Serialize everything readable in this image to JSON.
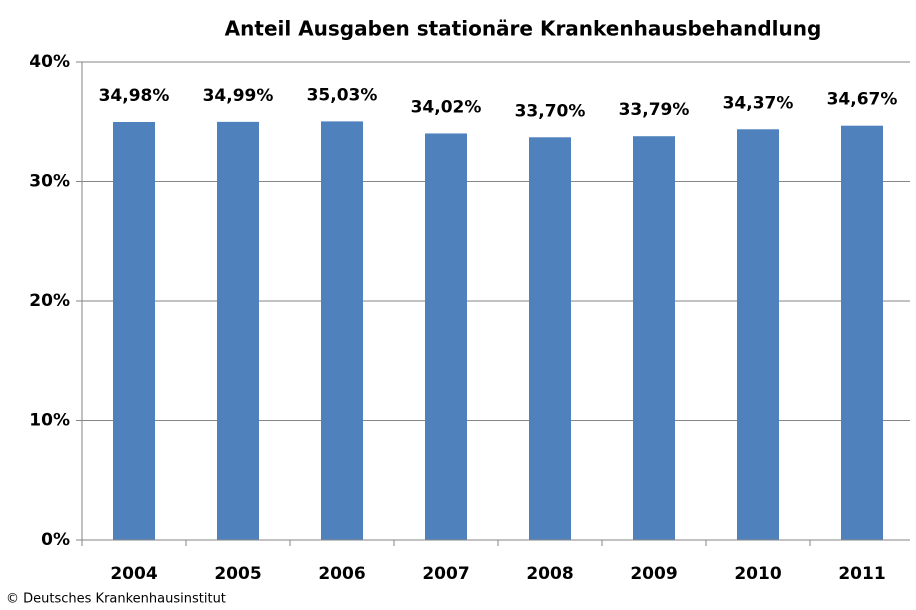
{
  "chart_data": {
    "type": "bar",
    "title": "Anteil Ausgaben stationäre Krankenhausbehandlung",
    "categories": [
      "2004",
      "2005",
      "2006",
      "2007",
      "2008",
      "2009",
      "2010",
      "2011"
    ],
    "values": [
      34.98,
      34.99,
      35.03,
      34.02,
      33.7,
      33.79,
      34.37,
      34.67
    ],
    "value_labels": [
      "34,98%",
      "34,99%",
      "35,03%",
      "34,02%",
      "33,70%",
      "33,79%",
      "34,37%",
      "34,67%"
    ],
    "color": "#4f81bd",
    "ylim": [
      0,
      40
    ],
    "yticks": [
      {
        "value": 0,
        "label": "0%"
      },
      {
        "value": 10,
        "label": "10%"
      },
      {
        "value": 20,
        "label": "20%"
      },
      {
        "value": 30,
        "label": "30%"
      },
      {
        "value": 40,
        "label": "40%"
      }
    ],
    "grid": true,
    "source": "© Deutsches Krankenhausinstitut"
  }
}
